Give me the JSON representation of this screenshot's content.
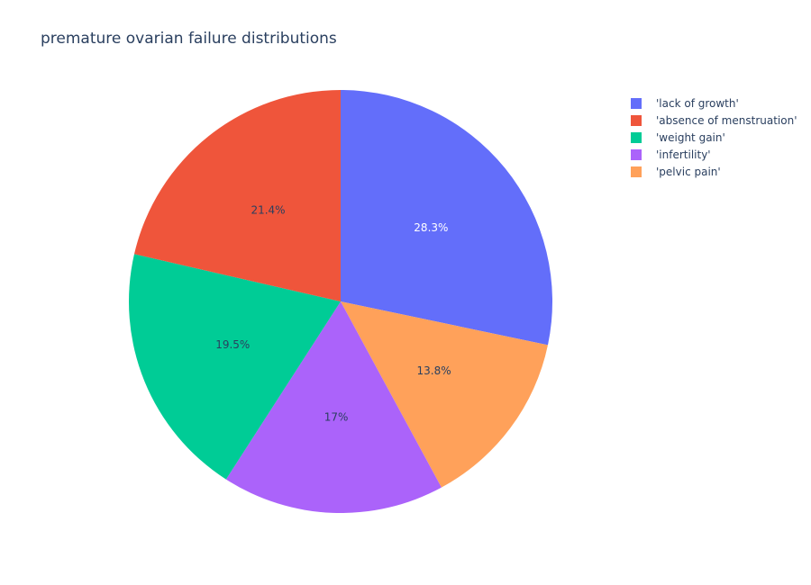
{
  "chart": {
    "title": "premature ovarian failure distributions"
  },
  "chart_data": {
    "type": "pie",
    "title": "premature ovarian failure distributions",
    "labels": [
      "'lack of growth'",
      "'absence of menstruation'",
      "'weight gain'",
      "'infertility'",
      "'pelvic pain'"
    ],
    "values": [
      28.3,
      21.4,
      19.5,
      17.0,
      13.8
    ],
    "percent_labels": [
      "28.3%",
      "21.4%",
      "19.5%",
      "17%",
      "13.8%"
    ],
    "colors": [
      "#636efa",
      "#EF553B",
      "#00cc96",
      "#ab63fa",
      "#FFA15A"
    ],
    "text_colors": [
      "#ffffff",
      "#2a3f5f",
      "#2a3f5f",
      "#2a3f5f",
      "#2a3f5f"
    ],
    "order_on_pie": [
      "'lack of growth'",
      "'pelvic pain'",
      "'infertility'",
      "'weight gain'",
      "'absence of menstruation'"
    ],
    "direction": "clockwise",
    "start": "top",
    "legend_placement": "top-right"
  },
  "legend": {
    "items": [
      {
        "label": "'lack of growth'",
        "color": "#636efa"
      },
      {
        "label": "'absence of menstruation'",
        "color": "#EF553B"
      },
      {
        "label": "'weight gain'",
        "color": "#00cc96"
      },
      {
        "label": "'infertility'",
        "color": "#ab63fa"
      },
      {
        "label": "'pelvic pain'",
        "color": "#FFA15A"
      }
    ]
  }
}
